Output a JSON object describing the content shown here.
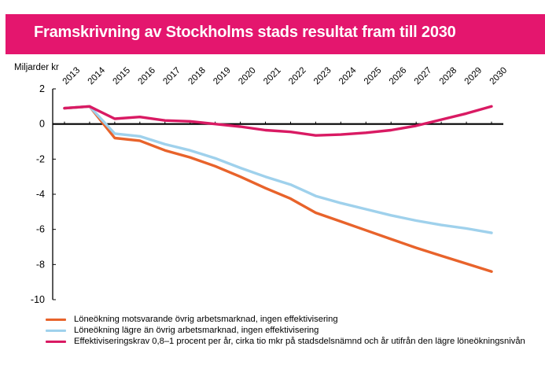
{
  "chart_data": {
    "type": "line",
    "title": "Framskrivning av Stockholms stads resultat fram till 2030",
    "ylabel": "Miljarder kr",
    "xlabel": "",
    "ylim": [
      -10,
      2
    ],
    "yticks": [
      2,
      0,
      -2,
      -4,
      -6,
      -8,
      -10
    ],
    "x": [
      "2013",
      "2014",
      "2015",
      "2016",
      "2017",
      "2018",
      "2019",
      "2020",
      "2021",
      "2022",
      "2023",
      "2024",
      "2025",
      "2026",
      "2027",
      "2028",
      "2029",
      "2030"
    ],
    "series": [
      {
        "name": "Löneökning motsvarande övrig arbetsmarknad, ingen effektivisering",
        "color": "#e8632b",
        "values": [
          0.9,
          1.0,
          -0.8,
          -0.95,
          -1.5,
          -1.9,
          -2.4,
          -3.0,
          -3.65,
          -4.25,
          -5.05,
          -5.55,
          -6.05,
          -6.55,
          -7.05,
          -7.5,
          -7.95,
          -8.4
        ]
      },
      {
        "name": "Löneökning lägre än övrig arbetsmarknad, ingen effektivisering",
        "color": "#9fd1ec",
        "values": [
          0.9,
          1.0,
          -0.55,
          -0.7,
          -1.15,
          -1.5,
          -1.95,
          -2.5,
          -3.0,
          -3.45,
          -4.1,
          -4.5,
          -4.85,
          -5.2,
          -5.5,
          -5.75,
          -5.95,
          -6.2
        ]
      },
      {
        "name": "Effektiviseringskrav 0,8–1 procent per år, cirka tio mkr på stadsdelsnämnd och år utifrån den lägre löneökningsnivån",
        "color": "#d91a63",
        "values": [
          0.9,
          1.0,
          0.3,
          0.4,
          0.2,
          0.15,
          0.0,
          -0.15,
          -0.35,
          -0.45,
          -0.65,
          -0.6,
          -0.5,
          -0.35,
          -0.1,
          0.25,
          0.6,
          1.0
        ]
      }
    ]
  }
}
